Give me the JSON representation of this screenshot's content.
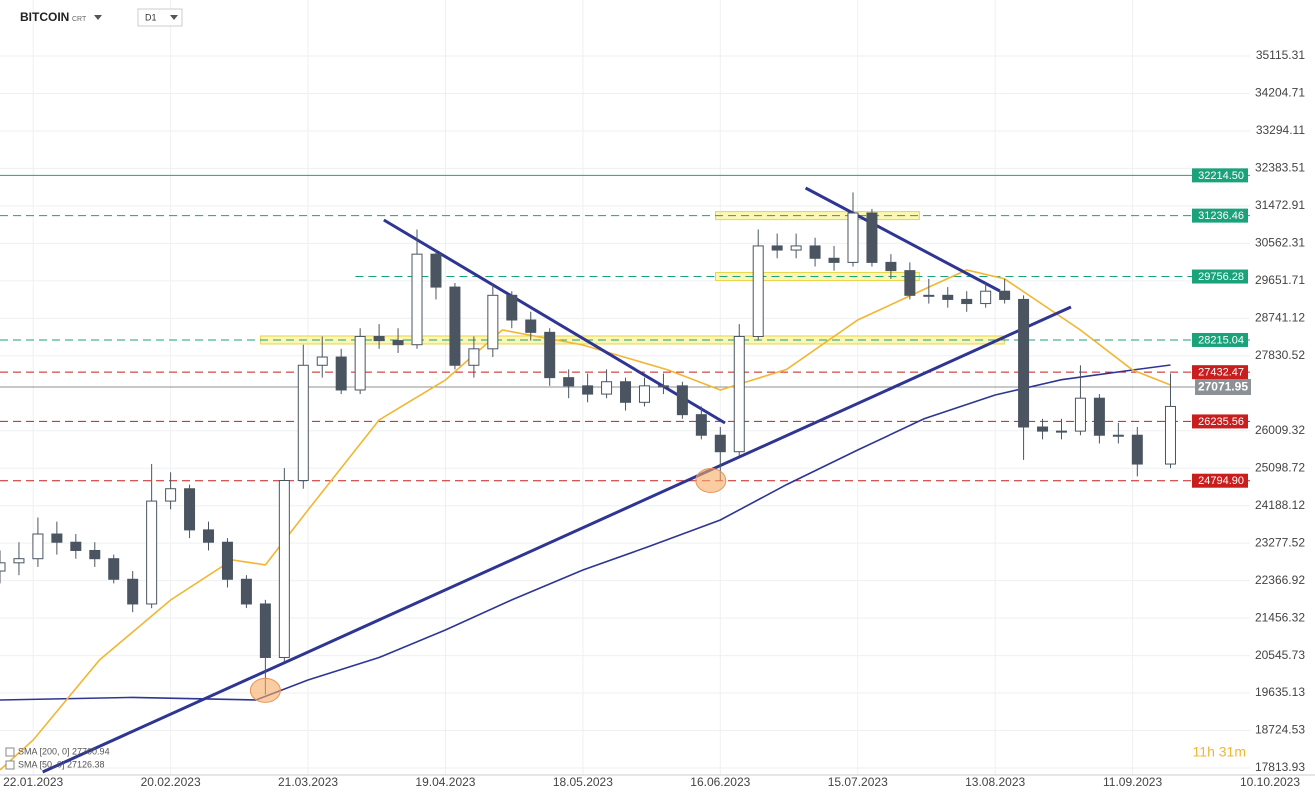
{
  "chart_data": {
    "type": "candlestick",
    "title": "BITCOIN",
    "subtitle": "CRT",
    "timeframe": "D1",
    "timer": "11h 31m",
    "xlim": [
      "15.01.2023",
      "10.10.2023"
    ],
    "xticks": [
      "22.01.2023",
      "20.02.2023",
      "21.03.2023",
      "19.04.2023",
      "18.05.2023",
      "16.06.2023",
      "15.07.2023",
      "13.08.2023",
      "11.09.2023",
      "10.10.2023"
    ],
    "ylim": [
      17644,
      36476
    ],
    "yticks": [
      35115.31,
      34204.71,
      33294.11,
      32383.51,
      31472.91,
      30562.31,
      29651.71,
      28741.12,
      27830.52,
      26009.32,
      25098.72,
      24188.12,
      23277.52,
      22366.92,
      21456.32,
      20545.73,
      19635.13,
      18724.53,
      17813.93
    ],
    "grid": true,
    "up_color": "#ffffff",
    "down_color": "#4a5561",
    "wick_color": "#4a5561",
    "candles": {
      "dates": [
        "15.01.2023",
        "19.01.2023",
        "23.01.2023",
        "27.01.2023",
        "31.01.2023",
        "04.02.2023",
        "08.02.2023",
        "12.02.2023",
        "16.02.2023",
        "20.02.2023",
        "24.02.2023",
        "28.02.2023",
        "04.03.2023",
        "08.03.2023",
        "12.03.2023",
        "16.03.2023",
        "20.03.2023",
        "24.03.2023",
        "28.03.2023",
        "01.04.2023",
        "05.04.2023",
        "09.04.2023",
        "13.04.2023",
        "17.04.2023",
        "21.04.2023",
        "25.04.2023",
        "29.04.2023",
        "03.05.2023",
        "07.05.2023",
        "11.05.2023",
        "15.05.2023",
        "19.05.2023",
        "23.05.2023",
        "27.05.2023",
        "31.05.2023",
        "04.06.2023",
        "08.06.2023",
        "12.06.2023",
        "16.06.2023",
        "20.06.2023",
        "24.06.2023",
        "28.06.2023",
        "02.07.2023",
        "06.07.2023",
        "10.07.2023",
        "14.07.2023",
        "18.07.2023",
        "22.07.2023",
        "26.07.2023",
        "30.07.2023",
        "03.08.2023",
        "07.08.2023",
        "11.08.2023",
        "15.08.2023",
        "19.08.2023",
        "23.08.2023",
        "27.08.2023",
        "31.08.2023",
        "04.09.2023",
        "08.09.2023",
        "12.09.2023",
        "19.09.2023"
      ],
      "open": [
        22600,
        22800,
        22900,
        23500,
        23300,
        23100,
        22900,
        22400,
        21800,
        24300,
        24600,
        23600,
        23300,
        22400,
        21800,
        20500,
        24800,
        27600,
        27800,
        27000,
        28300,
        28200,
        28100,
        30300,
        29500,
        27600,
        28000,
        29300,
        28700,
        28400,
        27300,
        27100,
        26900,
        27200,
        26700,
        27100,
        27100,
        26400,
        25900,
        25500,
        28300,
        30500,
        30400,
        30500,
        30200,
        30100,
        31300,
        30100,
        29900,
        29300,
        29300,
        29200,
        29100,
        29400,
        29200,
        26100,
        26000,
        26000,
        26800,
        25900,
        25900,
        25200
      ],
      "high": [
        23100,
        23300,
        23900,
        23800,
        23500,
        23300,
        23000,
        22600,
        25200,
        25000,
        24700,
        23800,
        23400,
        22500,
        21900,
        25100,
        28100,
        28300,
        28000,
        28500,
        28600,
        28500,
        30900,
        30400,
        29600,
        28300,
        29600,
        29400,
        28900,
        28500,
        27500,
        27400,
        27500,
        27300,
        27300,
        27400,
        27200,
        26600,
        26100,
        28600,
        30900,
        30800,
        30800,
        30700,
        30500,
        31800,
        31400,
        30300,
        30100,
        29700,
        29500,
        29400,
        29600,
        29700,
        29300,
        26300,
        26300,
        27600,
        26900,
        26200,
        26100,
        27400
      ],
      "low": [
        22300,
        22500,
        22700,
        23000,
        22900,
        22700,
        22300,
        21600,
        21700,
        24100,
        23400,
        23100,
        22200,
        21700,
        19600,
        20400,
        24600,
        27300,
        26900,
        26900,
        28000,
        27900,
        28000,
        29200,
        27500,
        27300,
        27800,
        28500,
        28200,
        27100,
        26800,
        26700,
        26800,
        26500,
        26600,
        26900,
        26300,
        25800,
        24800,
        25400,
        28200,
        30200,
        30200,
        30000,
        29900,
        30000,
        30000,
        29700,
        29200,
        29100,
        29000,
        28900,
        29000,
        29100,
        25300,
        25800,
        25800,
        25900,
        25700,
        25700,
        24900,
        25100
      ],
      "close": [
        22800,
        22900,
        23500,
        23300,
        23100,
        22900,
        22400,
        21800,
        24300,
        24600,
        23600,
        23300,
        22400,
        21800,
        20500,
        24800,
        27600,
        27800,
        27000,
        28300,
        28200,
        28100,
        30300,
        29500,
        27600,
        28000,
        29300,
        28700,
        28400,
        27300,
        27100,
        26900,
        27200,
        26700,
        27100,
        27100,
        26400,
        25900,
        25500,
        28300,
        30500,
        30400,
        30500,
        30200,
        30100,
        31300,
        30100,
        29900,
        29300,
        29300,
        29200,
        29100,
        29400,
        29200,
        26100,
        26000,
        26000,
        26800,
        25900,
        25900,
        25200,
        26600
      ]
    },
    "sma": [
      {
        "name": "SMA [200, 0] 27700.94",
        "color": "#2e3592",
        "dates": [
          "15.01.2023",
          "12.02.2023",
          "10.03.2023",
          "21.03.2023",
          "05.04.2023",
          "19.04.2023",
          "03.05.2023",
          "18.05.2023",
          "01.06.2023",
          "16.06.2023",
          "30.06.2023",
          "15.07.2023",
          "29.07.2023",
          "13.08.2023",
          "27.08.2023",
          "11.09.2023",
          "19.09.2023"
        ],
        "values": [
          19466,
          19530,
          19466,
          19952,
          20500,
          21167,
          21900,
          22625,
          23200,
          23840,
          24700,
          25541,
          26300,
          26878,
          27250,
          27485,
          27607
        ]
      },
      {
        "name": "SMA [50, 0] 27126.38",
        "color": "#f2b632",
        "dates": [
          "15.01.2023",
          "22.01.2023",
          "05.02.2023",
          "20.02.2023",
          "05.03.2023",
          "12.03.2023",
          "21.03.2023",
          "05.04.2023",
          "19.04.2023",
          "01.05.2023",
          "18.05.2023",
          "05.06.2023",
          "16.06.2023",
          "30.06.2023",
          "15.07.2023",
          "31.07.2023",
          "07.08.2023",
          "15.08.2023",
          "31.08.2023",
          "11.09.2023",
          "19.09.2023"
        ],
        "values": [
          17765,
          18494,
          20438,
          21896,
          22868,
          22750,
          24083,
          26270,
          27242,
          28457,
          28092,
          27485,
          26999,
          27500,
          28700,
          29550,
          29915,
          29700,
          28457,
          27485,
          27120
        ]
      }
    ],
    "levels": [
      {
        "value": 32214.5,
        "label": "32214.50",
        "color": "#1aa37a",
        "dashed": false
      },
      {
        "value": 31236.46,
        "label": "31236.46",
        "color": "#1aa37a",
        "dashed": true
      },
      {
        "value": 29756.28,
        "label": "29756.28",
        "color": "#1aa37a",
        "dashed": true,
        "start": "31.03.2023"
      },
      {
        "value": 28215.04,
        "label": "28215.04",
        "color": "#1aa37a",
        "dashed": true
      },
      {
        "value": 27432.47,
        "label": "27432.47",
        "color": "#c81e1e",
        "dashed": true
      },
      {
        "value": 26235.56,
        "label": "26235.56",
        "color": "#c81e1e",
        "dashed": true
      },
      {
        "value": 24794.9,
        "label": "24794.90",
        "color": "#c81e1e",
        "dashed": true
      }
    ],
    "current_price": {
      "value": 27071.95,
      "color": "#8c9196"
    },
    "trendlines": [
      {
        "start": [
          "24.01.2023",
          17716
        ],
        "end": [
          "29.08.2023",
          29016
        ],
        "color": "#2e3592"
      },
      {
        "start": [
          "06.04.2023",
          31130
        ],
        "end": [
          "17.06.2023",
          26197
        ],
        "color": "#2e3592"
      },
      {
        "start": [
          "04.07.2023",
          31908
        ],
        "end": [
          "14.08.2023",
          29405
        ],
        "color": "#2e3592"
      }
    ],
    "zones": [
      {
        "value": 31236.46,
        "start": "15.06.2023",
        "end": "28.07.2023"
      },
      {
        "value": 29756.28,
        "start": "15.06.2023",
        "end": "28.07.2023"
      },
      {
        "value": 28215.04,
        "start": "11.03.2023",
        "end": "15.08.2023"
      }
    ],
    "highlights": [
      {
        "date": "12.03.2023",
        "value": 19700
      },
      {
        "date": "14.06.2023",
        "value": 24800
      }
    ]
  }
}
